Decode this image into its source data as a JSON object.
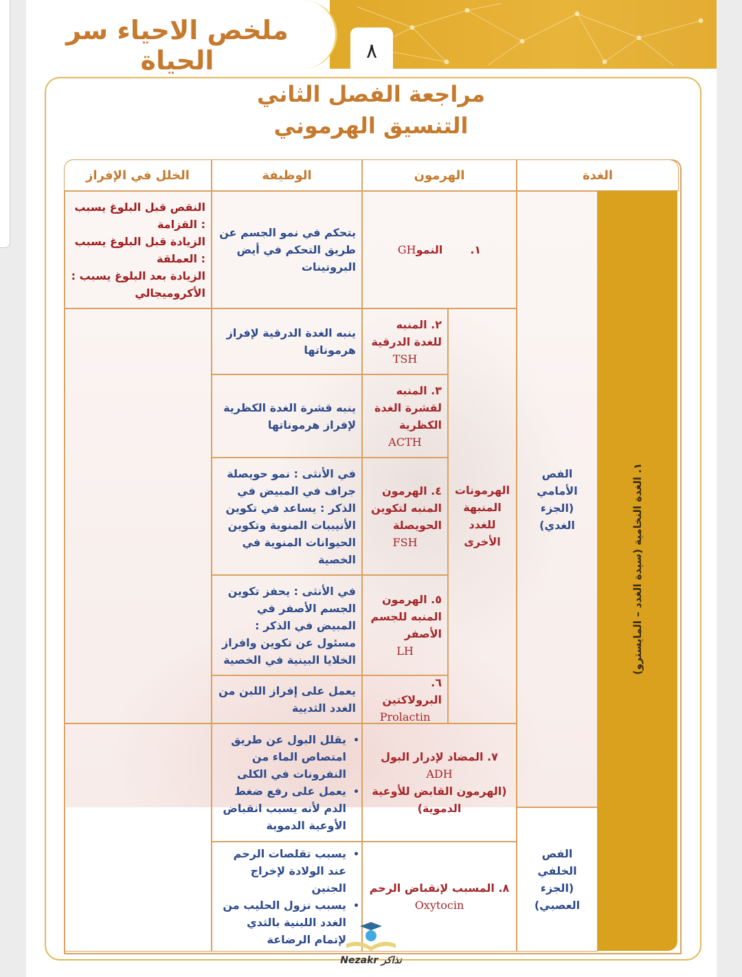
{
  "header": {
    "app_title": "ملخص الاحياء سر الحياة",
    "page_number": "٨"
  },
  "title": {
    "line1": "مراجعة الفصل الثاني",
    "line2": "التنسيق الهرموني"
  },
  "table": {
    "headers": {
      "gland": "الغدة",
      "hormone": "الهرمون",
      "function": "الوظيفة",
      "disorder": "الخلل في الإفراز"
    },
    "gland_main": "١. الغدة النخامية (سيدة الغدد – المايسترو)",
    "anterior_lobe": "الفص الأمامي (الجزء الغدي)",
    "posterior_lobe": "الفص الخلفي (الجزء العصبي)",
    "stimulating_group": "الهرمونات المنبهة للغدد الأخرى",
    "rows": [
      {
        "num": "١.",
        "name": "النمو",
        "abbr": "GH",
        "function": "يتحكم في نمو الجسم عن طريق التحكم في أيض البروتينات",
        "disorder": [
          "النقص قبل البلوغ يسبب : القزامة",
          "الزيادة قبل البلوغ يسبب : العملقة",
          "الزيادة بعد البلوغ يسبب : الأكروميجالي"
        ]
      },
      {
        "name": "٢. المنبه للغدة الدرقية",
        "abbr": "TSH",
        "function": "ينبه الغدة الدرقية لإفراز هرموناتها"
      },
      {
        "name": "٣. المنبه لقشرة الغدة الكظرية",
        "abbr": "ACTH",
        "function": "ينبه قشرة الغدة الكظرية لإفراز هرموناتها"
      },
      {
        "name": "٤. الهرمون المنبه لتكوين الحويصلة",
        "abbr": "FSH",
        "function": "في الأنثى : نمو حويصلة جراف في المبيض في الذكر : يساعد في تكوين الأنيببات المنوية وتكوين الحيوانات المنوية في الخصية"
      },
      {
        "name": "٥. الهرمون المنبه للجسم الأصفر",
        "abbr": "LH",
        "function": "في الأنثى : يحفز تكوين الجسم الأصفر في المبيض في الذكر : مسئول عن تكوين وافراز الخلايا البينية في الخصية"
      },
      {
        "name": "٦. البرولاكتين",
        "abbr": "Prolactin",
        "function": "يعمل على إفراز اللبن من الغدد الثديية"
      },
      {
        "name": "٧. المضاد لإدرار البول",
        "abbr": "ADH",
        "name2": "(الهرمون القابض للأوعية الدموية)",
        "function": [
          "يقلل البول عن طريق امتصاص الماء من النفرونات في الكلى",
          "يعمل على رفع ضغط الدم لأنه يسبب انقباض الأوعية الدموية"
        ]
      },
      {
        "name": "٨. المسبب لإنقباض الرحم",
        "abbr": "Oxytocin",
        "function": [
          "يسبب تقلصات الرحم عند الولادة لإخراج الجنين",
          "يسبب نزول الحليب من الغدد اللبنية بالثدي لإتمام الرضاعة"
        ]
      }
    ]
  },
  "watermark": {
    "logo_text": "Nezakr نذاكر"
  },
  "colors": {
    "gold": "#d9a11d",
    "title_brown": "#c57a2e",
    "hormone_red": "#a5262a",
    "function_blue": "#2d4a8a",
    "border": "#d9a15e"
  }
}
